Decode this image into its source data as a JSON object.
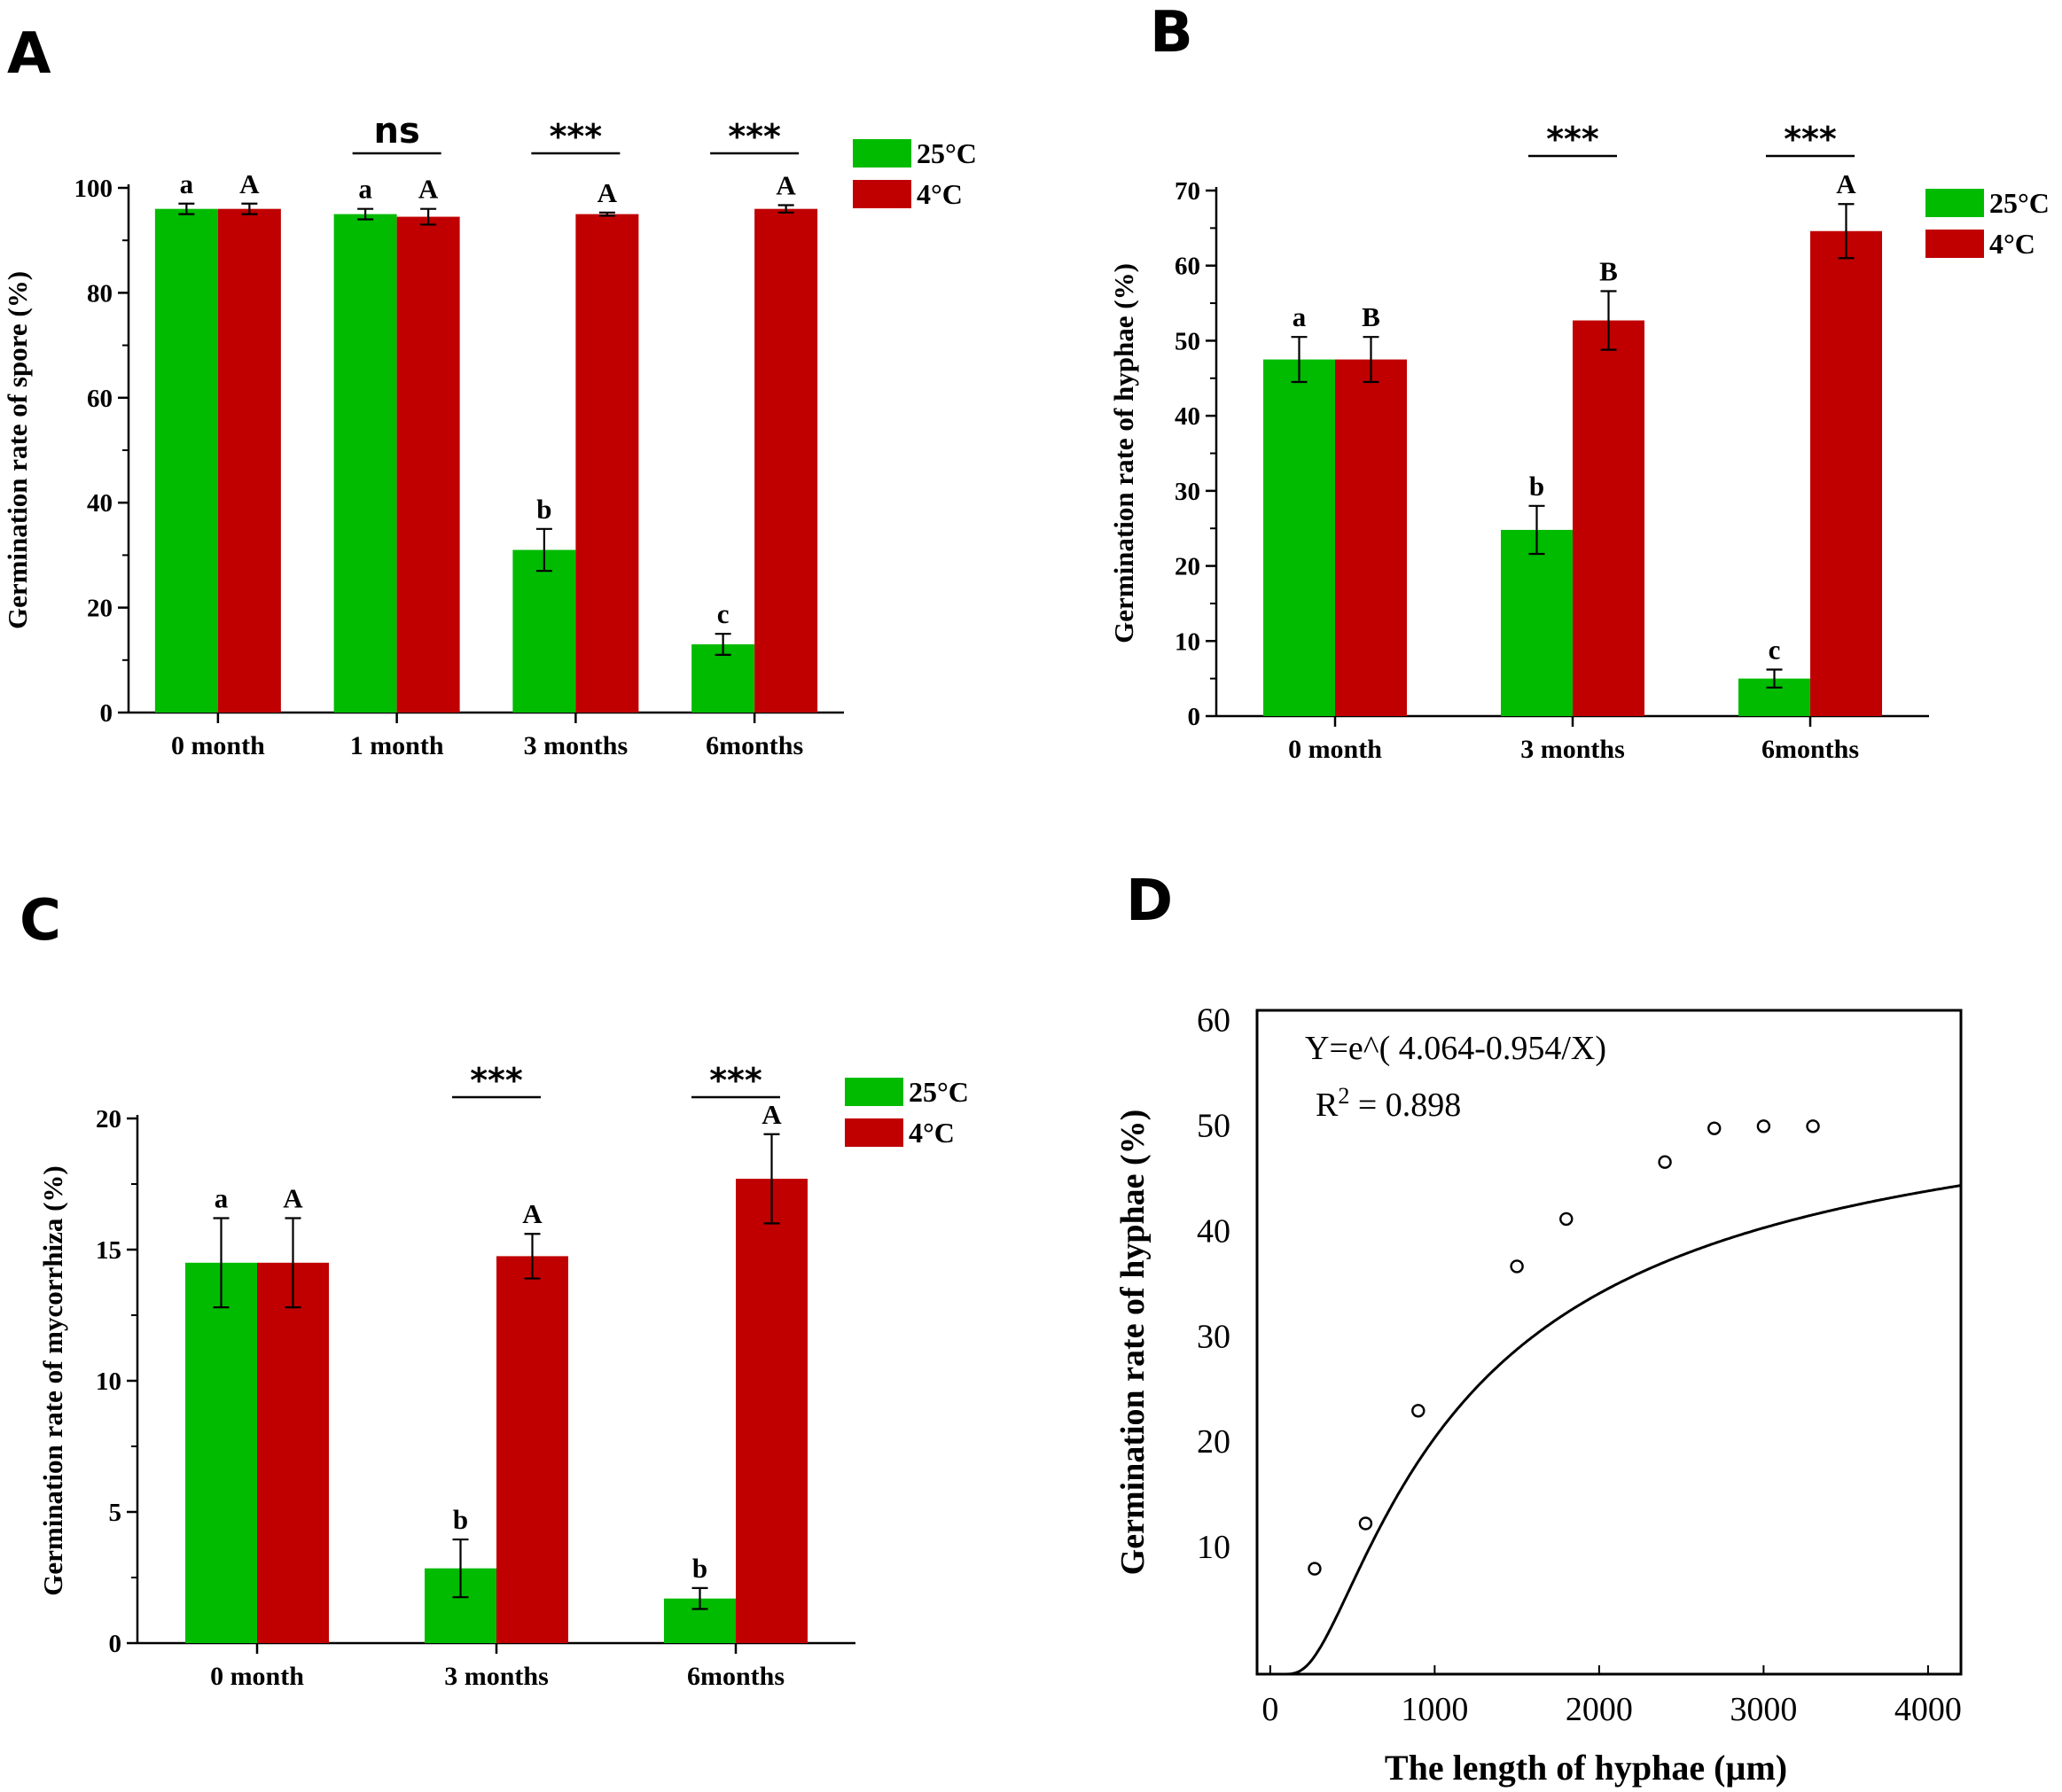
{
  "colors": {
    "warm": "#00BB00",
    "cold": "#C00000",
    "axis": "#000000"
  },
  "chart_data": [
    {
      "panel": "A",
      "type": "bar",
      "ylabel": "Germination rate of spore (%)",
      "xlabel": "",
      "ylim": [
        0,
        100
      ],
      "yticks": [
        "0",
        "20",
        "40",
        "60",
        "80",
        "100"
      ],
      "categories": [
        "0 month",
        "1 month",
        "3 months",
        "6months"
      ],
      "series": [
        {
          "name": "25°C",
          "values": [
            96,
            95,
            31,
            13
          ],
          "errors": [
            1,
            1,
            4,
            2
          ],
          "letters": [
            "a",
            "a",
            "b",
            "c"
          ]
        },
        {
          "name": "4°C",
          "values": [
            96,
            94.5,
            95,
            96
          ],
          "errors": [
            1,
            1.5,
            0.3,
            0.7
          ],
          "letters": [
            "A",
            "A",
            "A",
            "A"
          ]
        }
      ],
      "significance": [
        "",
        "ns",
        "***",
        "***"
      ],
      "legend": [
        "25°C",
        "4°C"
      ]
    },
    {
      "panel": "B",
      "type": "bar",
      "ylabel": "Germination rate of hyphae (%)",
      "xlabel": "",
      "ylim": [
        0,
        70
      ],
      "yticks": [
        "0",
        "10",
        "20",
        "30",
        "40",
        "50",
        "60",
        "70"
      ],
      "categories": [
        "0 month",
        "3 months",
        "6months"
      ],
      "series": [
        {
          "name": "25°C",
          "values": [
            47.5,
            24.8,
            5
          ],
          "errors": [
            3,
            3.2,
            1.2
          ],
          "letters": [
            "a",
            "b",
            "c"
          ]
        },
        {
          "name": "4°C",
          "values": [
            47.5,
            52.7,
            64.6
          ],
          "errors": [
            3,
            3.9,
            3.6
          ],
          "letters": [
            "B",
            "B",
            "A"
          ]
        }
      ],
      "significance": [
        "",
        "***",
        "***"
      ],
      "legend": [
        "25°C",
        "4°C"
      ]
    },
    {
      "panel": "C",
      "type": "bar",
      "ylabel": "Germination rate of mycorrhiza (%)",
      "xlabel": "",
      "ylim": [
        0,
        20
      ],
      "yticks": [
        "0",
        "5",
        "10",
        "15",
        "20"
      ],
      "categories": [
        "0 month",
        "3 months",
        "6months"
      ],
      "series": [
        {
          "name": "25°C",
          "values": [
            14.5,
            2.85,
            1.7
          ],
          "errors": [
            1.7,
            1.1,
            0.4
          ],
          "letters": [
            "a",
            "b",
            "b"
          ]
        },
        {
          "name": "4°C",
          "values": [
            14.5,
            14.75,
            17.7
          ],
          "errors": [
            1.7,
            0.85,
            1.7
          ],
          "letters": [
            "A",
            "A",
            "A"
          ]
        }
      ],
      "significance": [
        "",
        "***",
        "***"
      ],
      "legend": [
        "25°C",
        "4°C"
      ]
    },
    {
      "panel": "D",
      "type": "scatter",
      "ylabel": "Germination rate of  hyphae (%)",
      "xlabel": "The length of  hyphae (µm)",
      "xlim": [
        -80,
        4200
      ],
      "ylim": [
        0,
        63
      ],
      "xticks": [
        0,
        1000,
        2000,
        3000,
        4000
      ],
      "yticks": [
        10,
        20,
        30,
        40,
        50,
        60
      ],
      "points": [
        {
          "x": 270,
          "y": 10
        },
        {
          "x": 580,
          "y": 14.3
        },
        {
          "x": 900,
          "y": 25
        },
        {
          "x": 1500,
          "y": 38.7
        },
        {
          "x": 1800,
          "y": 43.2
        },
        {
          "x": 2400,
          "y": 48.6
        },
        {
          "x": 2700,
          "y": 51.8
        },
        {
          "x": 3000,
          "y": 52
        },
        {
          "x": 3300,
          "y": 52
        }
      ],
      "fit": {
        "type": "exp-reciprocal",
        "a": 4.064,
        "b": 0.954,
        "x_scale": 1000,
        "from": 60,
        "to": 4200
      },
      "equation": "Y=e^( 4.064-0.954/X)",
      "r2_label": "R",
      "r2_sup": "2",
      "r2_value": " = 0.898"
    }
  ]
}
